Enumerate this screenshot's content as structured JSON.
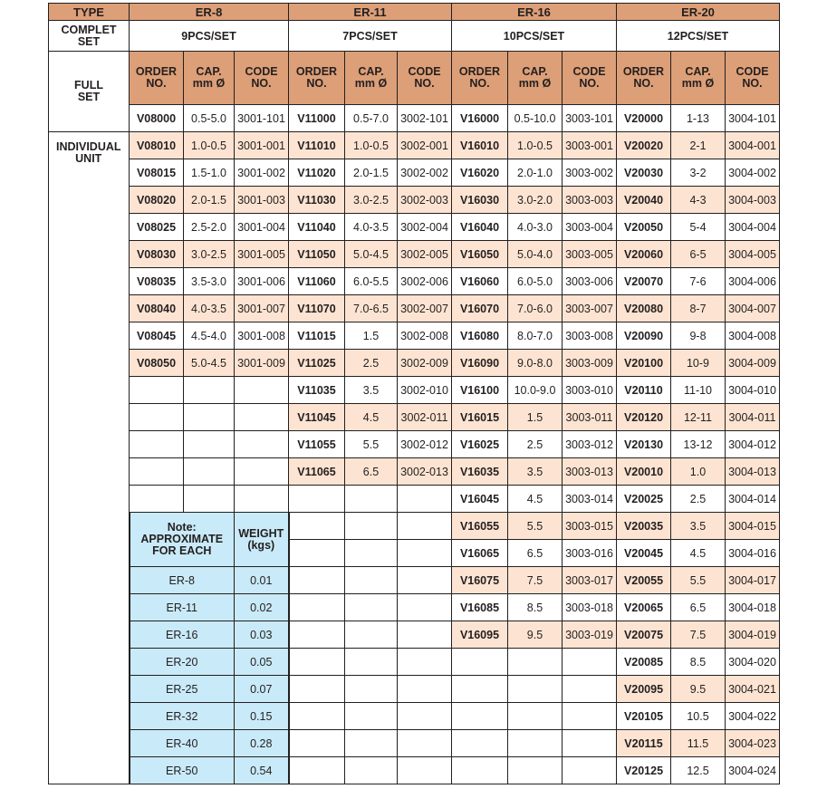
{
  "labels": {
    "type": "TYPE",
    "complete_set": "COMPLET SET",
    "full_set": "FULL SET",
    "individual_unit": "INDIVIDUAL UNIT",
    "order_no": "ORDER NO.",
    "cap": "CAP. mm Ø",
    "code_no": "CODE NO."
  },
  "note": {
    "title": "Note: APPROXIMATE FOR EACH",
    "weight": "WEIGHT (kgs)",
    "rows": [
      [
        "ER-8",
        "0.01"
      ],
      [
        "ER-11",
        "0.02"
      ],
      [
        "ER-16",
        "0.03"
      ],
      [
        "ER-20",
        "0.05"
      ],
      [
        "ER-25",
        "0.07"
      ],
      [
        "ER-32",
        "0.15"
      ],
      [
        "ER-40",
        "0.28"
      ],
      [
        "ER-50",
        "0.54"
      ]
    ]
  },
  "colors": {
    "header": "#dc9f77",
    "shaded_row": "#fde4d2",
    "note_bg": "#c9eaf8"
  },
  "er": [
    {
      "type": "ER-8",
      "set": "9PCS/SET",
      "full": [
        "V08000",
        "0.5-5.0",
        "3001-101"
      ],
      "rows": [
        [
          "V08010",
          "1.0-0.5",
          "3001-001"
        ],
        [
          "V08015",
          "1.5-1.0",
          "3001-002"
        ],
        [
          "V08020",
          "2.0-1.5",
          "3001-003"
        ],
        [
          "V08025",
          "2.5-2.0",
          "3001-004"
        ],
        [
          "V08030",
          "3.0-2.5",
          "3001-005"
        ],
        [
          "V08035",
          "3.5-3.0",
          "3001-006"
        ],
        [
          "V08040",
          "4.0-3.5",
          "3001-007"
        ],
        [
          "V08045",
          "4.5-4.0",
          "3001-008"
        ],
        [
          "V08050",
          "5.0-4.5",
          "3001-009"
        ]
      ]
    },
    {
      "type": "ER-11",
      "set": "7PCS/SET",
      "full": [
        "V11000",
        "0.5-7.0",
        "3002-101"
      ],
      "rows": [
        [
          "V11010",
          "1.0-0.5",
          "3002-001"
        ],
        [
          "V11020",
          "2.0-1.5",
          "3002-002"
        ],
        [
          "V11030",
          "3.0-2.5",
          "3002-003"
        ],
        [
          "V11040",
          "4.0-3.5",
          "3002-004"
        ],
        [
          "V11050",
          "5.0-4.5",
          "3002-005"
        ],
        [
          "V11060",
          "6.0-5.5",
          "3002-006"
        ],
        [
          "V11070",
          "7.0-6.5",
          "3002-007"
        ],
        [
          "V11015",
          "1.5",
          "3002-008"
        ],
        [
          "V11025",
          "2.5",
          "3002-009"
        ],
        [
          "V11035",
          "3.5",
          "3002-010"
        ],
        [
          "V11045",
          "4.5",
          "3002-011"
        ],
        [
          "V11055",
          "5.5",
          "3002-012"
        ],
        [
          "V11065",
          "6.5",
          "3002-013"
        ]
      ]
    },
    {
      "type": "ER-16",
      "set": "10PCS/SET",
      "full": [
        "V16000",
        "0.5-10.0",
        "3003-101"
      ],
      "rows": [
        [
          "V16010",
          "1.0-0.5",
          "3003-001"
        ],
        [
          "V16020",
          "2.0-1.0",
          "3003-002"
        ],
        [
          "V16030",
          "3.0-2.0",
          "3003-003"
        ],
        [
          "V16040",
          "4.0-3.0",
          "3003-004"
        ],
        [
          "V16050",
          "5.0-4.0",
          "3003-005"
        ],
        [
          "V16060",
          "6.0-5.0",
          "3003-006"
        ],
        [
          "V16070",
          "7.0-6.0",
          "3003-007"
        ],
        [
          "V16080",
          "8.0-7.0",
          "3003-008"
        ],
        [
          "V16090",
          "9.0-8.0",
          "3003-009"
        ],
        [
          "V16100",
          "10.0-9.0",
          "3003-010"
        ],
        [
          "V16015",
          "1.5",
          "3003-011"
        ],
        [
          "V16025",
          "2.5",
          "3003-012"
        ],
        [
          "V16035",
          "3.5",
          "3003-013"
        ],
        [
          "V16045",
          "4.5",
          "3003-014"
        ],
        [
          "V16055",
          "5.5",
          "3003-015"
        ],
        [
          "V16065",
          "6.5",
          "3003-016"
        ],
        [
          "V16075",
          "7.5",
          "3003-017"
        ],
        [
          "V16085",
          "8.5",
          "3003-018"
        ],
        [
          "V16095",
          "9.5",
          "3003-019"
        ]
      ]
    },
    {
      "type": "ER-20",
      "set": "12PCS/SET",
      "full": [
        "V20000",
        "1-13",
        "3004-101"
      ],
      "rows": [
        [
          "V20020",
          "2-1",
          "3004-001"
        ],
        [
          "V20030",
          "3-2",
          "3004-002"
        ],
        [
          "V20040",
          "4-3",
          "3004-003"
        ],
        [
          "V20050",
          "5-4",
          "3004-004"
        ],
        [
          "V20060",
          "6-5",
          "3004-005"
        ],
        [
          "V20070",
          "7-6",
          "3004-006"
        ],
        [
          "V20080",
          "8-7",
          "3004-007"
        ],
        [
          "V20090",
          "9-8",
          "3004-008"
        ],
        [
          "V20100",
          "10-9",
          "3004-009"
        ],
        [
          "V20110",
          "11-10",
          "3004-010"
        ],
        [
          "V20120",
          "12-11",
          "3004-011"
        ],
        [
          "V20130",
          "13-12",
          "3004-012"
        ],
        [
          "V20010",
          "1.0",
          "3004-013"
        ],
        [
          "V20025",
          "2.5",
          "3004-014"
        ],
        [
          "V20035",
          "3.5",
          "3004-015"
        ],
        [
          "V20045",
          "4.5",
          "3004-016"
        ],
        [
          "V20055",
          "5.5",
          "3004-017"
        ],
        [
          "V20065",
          "6.5",
          "3004-018"
        ],
        [
          "V20075",
          "7.5",
          "3004-019"
        ],
        [
          "V20085",
          "8.5",
          "3004-020"
        ],
        [
          "V20095",
          "9.5",
          "3004-021"
        ],
        [
          "V20105",
          "10.5",
          "3004-022"
        ],
        [
          "V20115",
          "11.5",
          "3004-023"
        ],
        [
          "V20125",
          "12.5",
          "3004-024"
        ]
      ]
    }
  ]
}
